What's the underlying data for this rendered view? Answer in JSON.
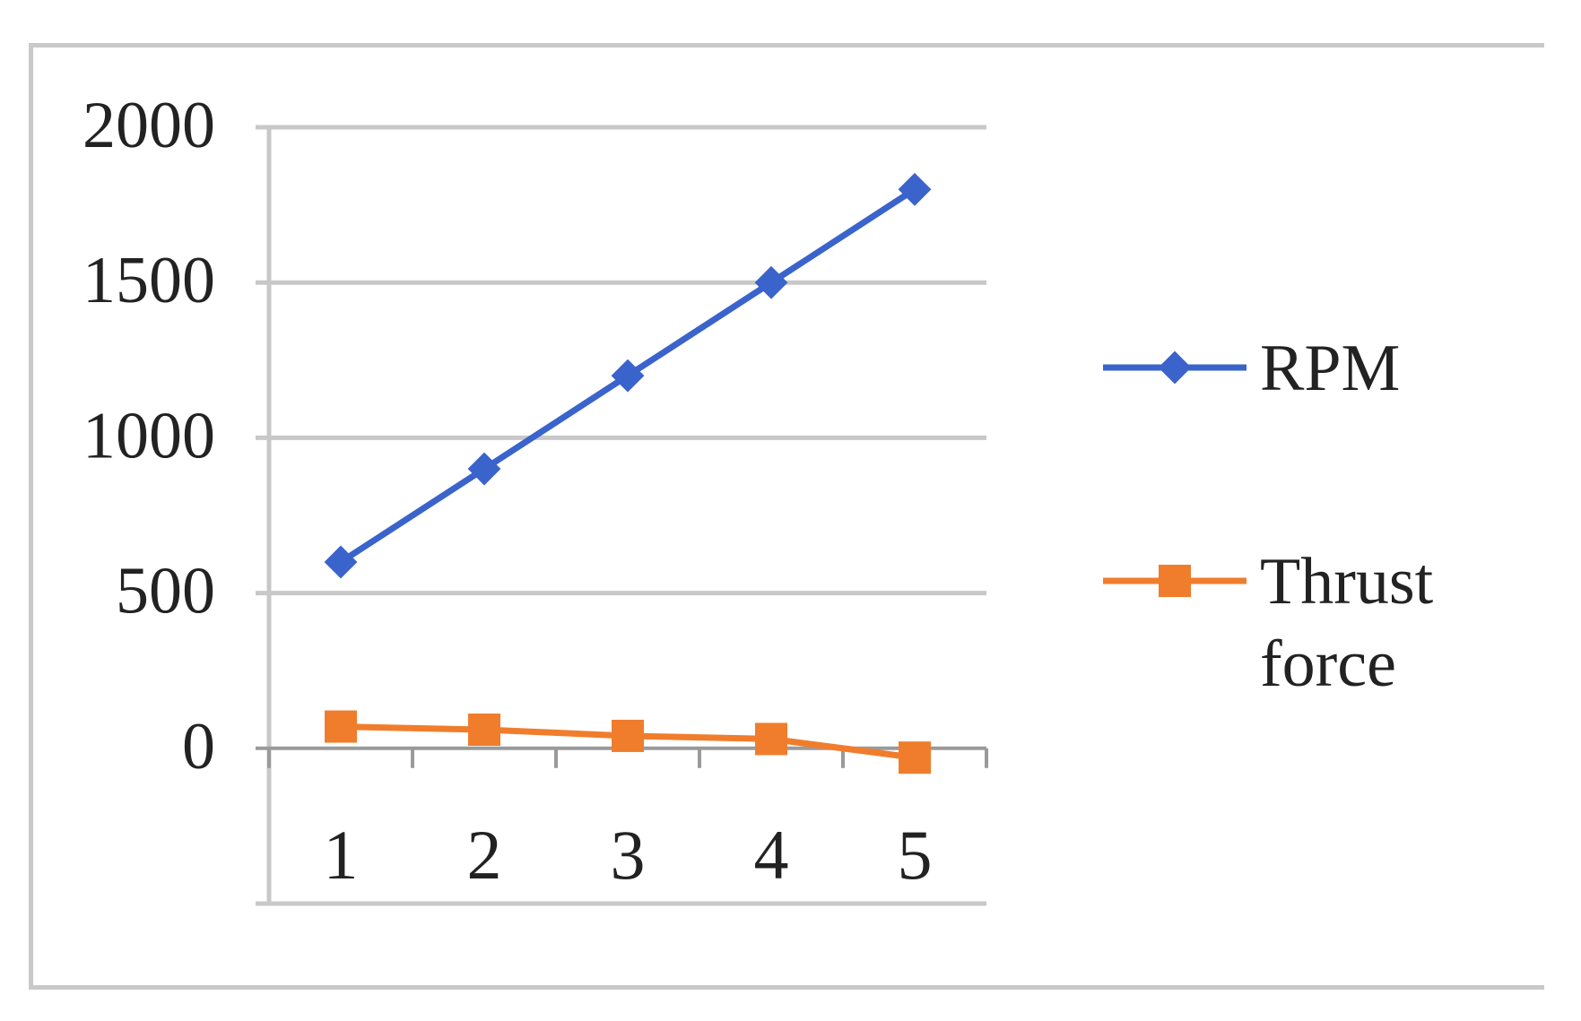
{
  "chart_data": {
    "type": "line",
    "title": "",
    "xlabel": "",
    "ylabel": "",
    "categories": [
      "1",
      "2",
      "3",
      "4",
      "5"
    ],
    "ylim": [
      -500,
      2000
    ],
    "yticks": [
      "2000",
      "1500",
      "1000",
      "500",
      "0"
    ],
    "grid": true,
    "legend_position": "right",
    "series": [
      {
        "name": "RPM",
        "color": "#3a63cc",
        "marker": "diamond",
        "values": [
          600,
          900,
          1200,
          1500,
          1800
        ]
      },
      {
        "name": "Thrust force",
        "name_lines": [
          "Thrust",
          "force"
        ],
        "color": "#f07d2c",
        "marker": "square",
        "values": [
          70,
          60,
          40,
          30,
          -30
        ]
      }
    ]
  }
}
